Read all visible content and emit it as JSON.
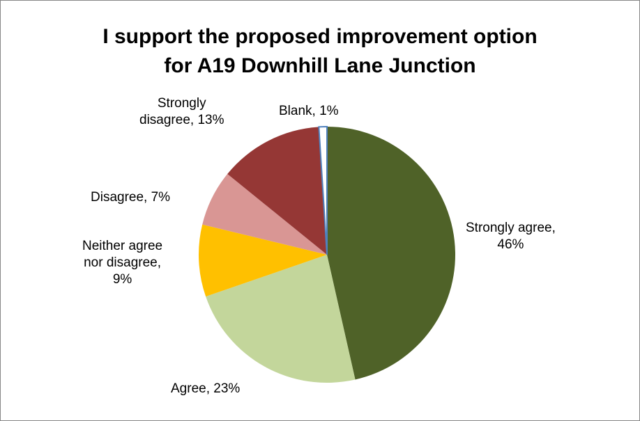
{
  "chart_data": {
    "type": "pie",
    "title_lines": [
      "I support the proposed improvement option",
      "for A19 Downhill Lane Junction"
    ],
    "slices": [
      {
        "category": "Strongly agree",
        "value": 46,
        "color": "#4F6228",
        "label_lines": [
          "Strongly agree,",
          "46%"
        ]
      },
      {
        "category": "Agree",
        "value": 23,
        "color": "#C3D69B",
        "label_lines": [
          "Agree, 23%"
        ]
      },
      {
        "category": "Neither agree nor disagree",
        "value": 9,
        "color": "#FFC000",
        "label_lines": [
          "Neither agree",
          "nor disagree,",
          "9%"
        ]
      },
      {
        "category": "Disagree",
        "value": 7,
        "color": "#D99694",
        "label_lines": [
          "Disagree, 7%"
        ]
      },
      {
        "category": "Strongly disagree",
        "value": 13,
        "color": "#953735",
        "label_lines": [
          "Strongly",
          "disagree, 13%"
        ]
      },
      {
        "category": "Blank",
        "value": 1,
        "color": "#FFFFFF",
        "stroke": "#4F81BD",
        "label_lines": [
          "Blank, 1%"
        ]
      }
    ],
    "legend": "none"
  }
}
